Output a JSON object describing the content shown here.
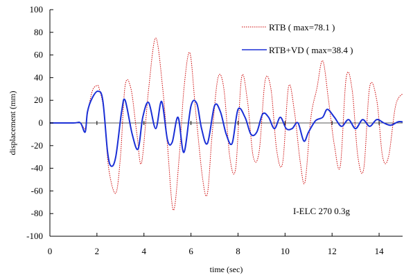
{
  "chart_data": {
    "type": "line",
    "xlabel": "time (sec)",
    "ylabel": "displacement (mm)",
    "xlim": [
      0,
      15
    ],
    "ylim": [
      -100,
      100
    ],
    "x_ticks": [
      0,
      2,
      4,
      6,
      8,
      10,
      12,
      14
    ],
    "y_ticks": [
      100,
      80,
      60,
      40,
      20,
      0,
      -20,
      -40,
      -60,
      -80,
      -100
    ],
    "grid": false,
    "legend_placement": "top-right",
    "annotation": "I-ELC 270 0.3g",
    "colors": {
      "rtb": "#cc0000",
      "rtbvd": "#1a2fd6",
      "axis": "#000000",
      "zero": "#555555"
    },
    "series": [
      {
        "name": "RTB ( max=78.1 )",
        "style": "dotted",
        "x": [
          0,
          1.0,
          1.3,
          1.5,
          1.6,
          1.8,
          2.0,
          2.1,
          2.3,
          2.5,
          2.8,
          3.0,
          3.2,
          3.45,
          3.7,
          3.9,
          4.2,
          4.5,
          4.8,
          5.0,
          5.25,
          5.5,
          5.7,
          5.95,
          6.2,
          6.5,
          6.7,
          6.9,
          7.15,
          7.4,
          7.65,
          7.9,
          8.15,
          8.4,
          8.65,
          8.9,
          9.15,
          9.4,
          9.65,
          9.9,
          10.15,
          10.4,
          10.65,
          10.85,
          11.1,
          11.35,
          11.6,
          11.85,
          12.1,
          12.35,
          12.6,
          12.85,
          13.1,
          13.35,
          13.6,
          13.9,
          14.15,
          14.4,
          14.7,
          15.0
        ],
        "y": [
          0,
          0,
          0,
          -5,
          8,
          28,
          33,
          30,
          10,
          -40,
          -62,
          -30,
          33,
          30,
          -10,
          -35,
          30,
          75,
          30,
          -20,
          -77,
          -30,
          30,
          62,
          10,
          -50,
          -62,
          -10,
          40,
          30,
          -30,
          -40,
          40,
          20,
          -30,
          -25,
          37,
          30,
          -25,
          -35,
          32,
          10,
          -35,
          -52,
          5,
          30,
          55,
          20,
          -20,
          -38,
          40,
          30,
          -30,
          -40,
          32,
          20,
          -30,
          -30,
          15,
          26
        ]
      },
      {
        "name": "RTB+VD ( max=38.4 )",
        "style": "solid",
        "x": [
          0,
          1.0,
          1.3,
          1.5,
          1.6,
          1.8,
          2.05,
          2.25,
          2.45,
          2.6,
          2.8,
          3.05,
          3.2,
          3.5,
          3.75,
          3.95,
          4.2,
          4.5,
          4.75,
          5.0,
          5.2,
          5.45,
          5.7,
          6.0,
          6.25,
          6.45,
          6.7,
          7.0,
          7.25,
          7.5,
          7.75,
          8.0,
          8.3,
          8.55,
          8.8,
          9.05,
          9.3,
          9.55,
          9.8,
          10.05,
          10.3,
          10.55,
          10.8,
          11.0,
          11.3,
          11.6,
          11.8,
          12.1,
          12.4,
          12.7,
          13.0,
          13.3,
          13.6,
          13.9,
          14.2,
          14.5,
          14.8,
          15.0
        ],
        "y": [
          0,
          0,
          0,
          -8,
          10,
          22,
          28,
          20,
          -25,
          -38,
          -30,
          10,
          20,
          -10,
          -23,
          5,
          18,
          -5,
          19,
          -15,
          -17,
          5,
          -26,
          15,
          17,
          -5,
          -18,
          15,
          10,
          -10,
          -18,
          12,
          5,
          -10,
          -8,
          8,
          5,
          -5,
          5,
          -5,
          -5,
          0,
          -16,
          -8,
          2,
          5,
          12,
          5,
          -3,
          3,
          -5,
          3,
          -3,
          3,
          0,
          -2,
          1,
          1
        ]
      }
    ]
  }
}
